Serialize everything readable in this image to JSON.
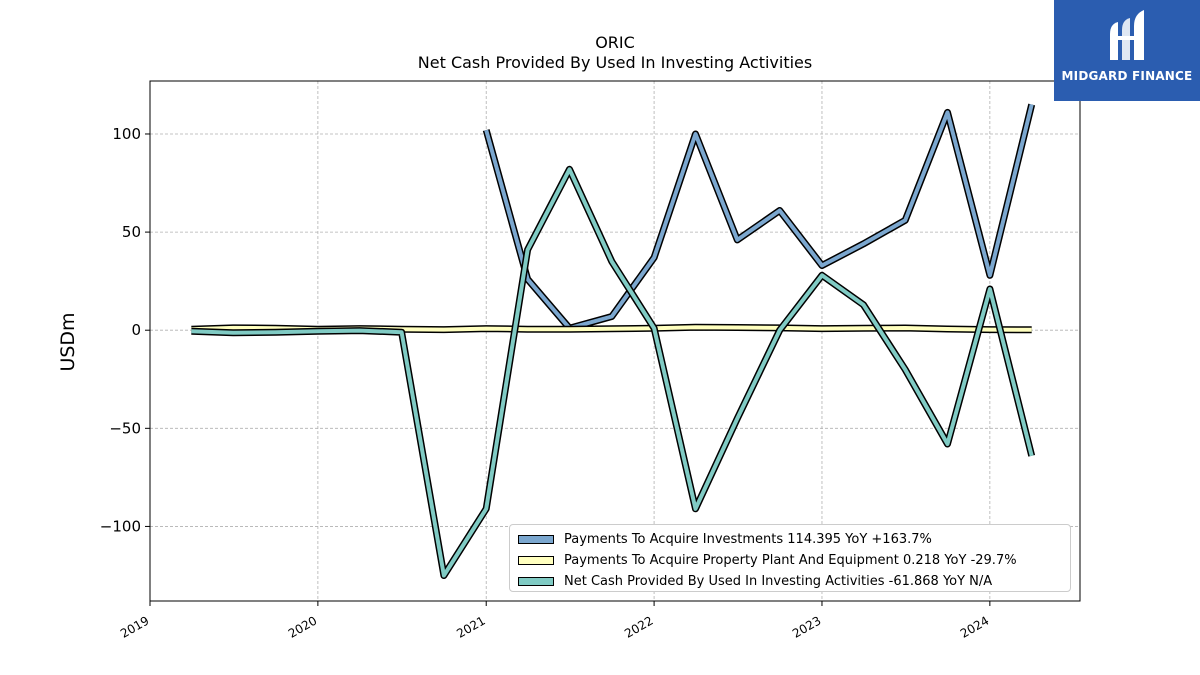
{
  "chart_data": {
    "type": "line",
    "title": "ORIC",
    "subtitle": "Net Cash Provided By Used In Investing Activities",
    "ylabel": "USDm",
    "ylim": [
      -138,
      127
    ],
    "xlim": [
      "2019-01-01",
      "2024-07-15"
    ],
    "yticks": [
      -100,
      -50,
      0,
      50,
      100
    ],
    "ytick_labels": [
      "−100",
      "−50",
      "0",
      "50",
      "100"
    ],
    "xticks": [
      "2019-01-01",
      "2020-01-01",
      "2021-01-01",
      "2022-01-01",
      "2023-01-01",
      "2024-01-01"
    ],
    "xtick_labels": [
      "2019",
      "2020",
      "2021",
      "2022",
      "2023",
      "2024"
    ],
    "grid": true,
    "legend_position": "lower-right",
    "series": [
      {
        "name": "Payments To Acquire Investments  114.395 YoY +163.7%",
        "color": "#7ba7cf",
        "x": [
          "2021-01-01",
          "2021-04-01",
          "2021-07-01",
          "2021-10-01",
          "2022-01-01",
          "2022-04-01",
          "2022-07-01",
          "2022-10-01",
          "2023-01-01",
          "2023-04-01",
          "2023-07-01",
          "2023-10-01",
          "2024-01-01",
          "2024-04-01"
        ],
        "values": [
          102,
          26,
          1,
          7,
          37,
          100,
          46,
          61,
          33,
          44,
          56,
          111,
          28,
          115
        ]
      },
      {
        "name": "Payments To Acquire Property Plant And Equipment  0.218 YoY -29.7%",
        "color": "#ffffbf",
        "x": [
          "2019-04-01",
          "2019-07-01",
          "2019-10-01",
          "2020-01-01",
          "2020-04-01",
          "2020-07-01",
          "2020-10-01",
          "2021-01-01",
          "2021-04-01",
          "2021-07-01",
          "2021-10-01",
          "2022-01-01",
          "2022-04-01",
          "2022-07-01",
          "2022-10-01",
          "2023-01-01",
          "2023-04-01",
          "2023-07-01",
          "2023-10-01",
          "2024-01-01",
          "2024-04-01"
        ],
        "values": [
          0.5,
          1.2,
          1,
          0.5,
          0.8,
          0.5,
          0.3,
          0.8,
          0.5,
          0.5,
          0.7,
          1,
          1.5,
          1.4,
          1.2,
          0.8,
          1,
          1.1,
          0.6,
          0.3,
          0.2
        ]
      },
      {
        "name": "Net Cash Provided By Used In Investing Activities  -61.868 YoY N/A",
        "color": "#80cbc4",
        "x": [
          "2019-04-01",
          "2019-07-01",
          "2019-10-01",
          "2020-01-01",
          "2020-04-01",
          "2020-07-01",
          "2020-10-01",
          "2021-01-01",
          "2021-04-01",
          "2021-07-01",
          "2021-10-01",
          "2022-01-01",
          "2022-04-01",
          "2022-07-01",
          "2022-10-01",
          "2023-01-01",
          "2023-04-01",
          "2023-07-01",
          "2023-10-01",
          "2024-01-01",
          "2024-04-01"
        ],
        "values": [
          -0.5,
          -1.3,
          -1,
          -0.5,
          -0.2,
          -1,
          -125,
          -91,
          41,
          82,
          35,
          1,
          -91,
          -45,
          0,
          28,
          13,
          -20,
          -58,
          21,
          -64
        ]
      }
    ]
  },
  "logo": {
    "text": "MIDGARD FINANCE"
  }
}
